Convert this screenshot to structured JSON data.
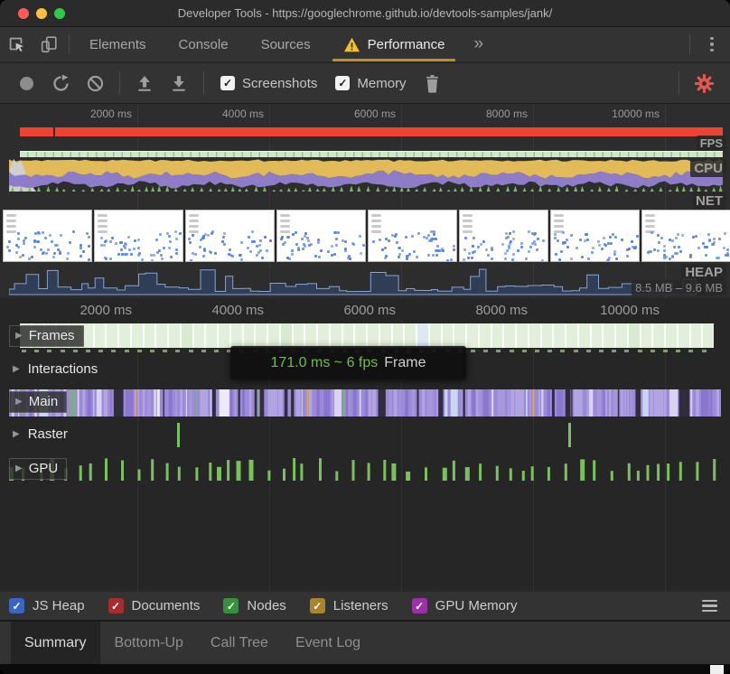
{
  "window": {
    "title": "Developer Tools - https://googlechrome.github.io/devtools-samples/jank/"
  },
  "tabbar": {
    "tabs": [
      {
        "label": "Elements"
      },
      {
        "label": "Console"
      },
      {
        "label": "Sources"
      },
      {
        "label": "Performance",
        "active": true,
        "warning": true
      }
    ],
    "overflow": "»"
  },
  "toolbar": {
    "screenshots_label": "Screenshots",
    "memory_label": "Memory"
  },
  "overview": {
    "ruler_ticks": [
      "2000 ms",
      "4000 ms",
      "6000 ms",
      "8000 ms",
      "10000 ms"
    ],
    "fps_label": "FPS",
    "cpu_label": "CPU",
    "net_label": "NET",
    "heap_label": "HEAP",
    "heap_range": "8.5 MB – 9.6 MB"
  },
  "timeline": {
    "ruler_ticks": [
      "2000 ms",
      "4000 ms",
      "6000 ms",
      "8000 ms",
      "10000 ms"
    ],
    "tracks": [
      {
        "label": "Frames"
      },
      {
        "label": "Interactions"
      },
      {
        "label": "Main"
      },
      {
        "label": "Raster"
      },
      {
        "label": "GPU"
      }
    ],
    "raster_marks_ms": [
      2600,
      8530
    ],
    "tooltip": {
      "value": "171.0 ms ~ 6 fps",
      "suffix": "Frame"
    }
  },
  "legend": {
    "items": [
      {
        "label": "JS Heap",
        "color": "#3a66c1"
      },
      {
        "label": "Documents",
        "color": "#a52d2d"
      },
      {
        "label": "Nodes",
        "color": "#37903b"
      },
      {
        "label": "Listeners",
        "color": "#a8842c"
      },
      {
        "label": "GPU Memory",
        "color": "#9932a5"
      }
    ]
  },
  "bottom_tabs": {
    "tabs": [
      {
        "label": "Summary",
        "active": true
      },
      {
        "label": "Bottom-Up"
      },
      {
        "label": "Call Tree"
      },
      {
        "label": "Event Log"
      }
    ]
  },
  "colors": {
    "tab_underline_orange": "#ca8a2a",
    "warning_yellow": "#f2c12e",
    "gear_red": "#e4564e",
    "fps_bar_red": "#ee4234",
    "cpu_scripting_yellow": "#e2bb58",
    "cpu_rendering_purple": "#8f7cc9",
    "cpu_painting_green": "#71bf5a",
    "cpu_other_gray": "#cfcfcf",
    "overview_frames_green": "#cde9c6",
    "heap_fill": "#2f3d57",
    "heap_stroke": "#87a3d2",
    "frames_bar_green": "#e2efda",
    "frames_bar_alt_blue": "#dde9f2",
    "main_purple": "#9c89d8",
    "gpu_green": "#77c25d",
    "raster_green": "#77c25d",
    "screenshot_dot_blue": "#5083dd",
    "tooltip_green": "#6dbf4f"
  }
}
